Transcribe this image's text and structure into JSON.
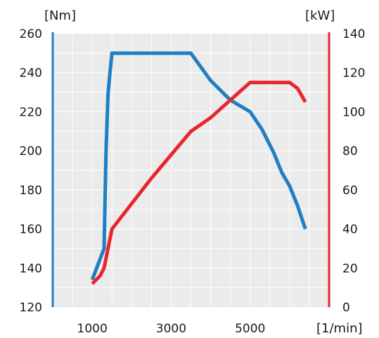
{
  "chart_data": {
    "type": "line",
    "left_unit": "[Nm]",
    "right_unit": "[kW]",
    "x_unit": "[1/min]",
    "x_ticks": [
      1000,
      3000,
      5000
    ],
    "x_tick_labels": [
      "1000",
      "3000",
      "5000"
    ],
    "xlim": [
      0,
      7000
    ],
    "y_left_ticks": [
      120,
      140,
      160,
      180,
      200,
      220,
      240,
      260
    ],
    "y_left_tick_labels": [
      "120",
      "140",
      "160",
      "180",
      "200",
      "220",
      "240",
      "260"
    ],
    "ylim_left": [
      120,
      260
    ],
    "y_right_ticks": [
      0,
      20,
      40,
      60,
      80,
      100,
      120,
      140
    ],
    "y_right_tick_labels": [
      "0",
      "20",
      "40",
      "60",
      "80",
      "100",
      "120",
      "140"
    ],
    "ylim_right": [
      0,
      140
    ],
    "grid": true,
    "colors": {
      "background": "#ebebeb",
      "grid": "#ffffff",
      "torque": "#1f7fc4",
      "power": "#e8262d",
      "text": "#1a1a1a"
    },
    "series": [
      {
        "axis": "left",
        "color": "#1f7fc4",
        "x": [
          1000,
          1300,
          1350,
          1400,
          1450,
          1500,
          3500,
          4000,
          4500,
          5000,
          5300,
          5600,
          5800,
          6000,
          6200,
          6400
        ],
        "y": [
          134,
          150,
          200,
          229,
          240,
          250,
          250,
          236,
          226,
          220,
          211,
          199,
          189,
          182,
          172,
          160
        ]
      },
      {
        "axis": "right",
        "color": "#e8262d",
        "x": [
          1000,
          1200,
          1300,
          1500,
          2500,
          3500,
          4000,
          4500,
          5000,
          5500,
          6000,
          6200,
          6400
        ],
        "y": [
          12,
          16,
          20,
          40,
          66,
          90,
          97,
          106,
          115,
          115,
          115,
          112,
          105
        ]
      }
    ]
  }
}
